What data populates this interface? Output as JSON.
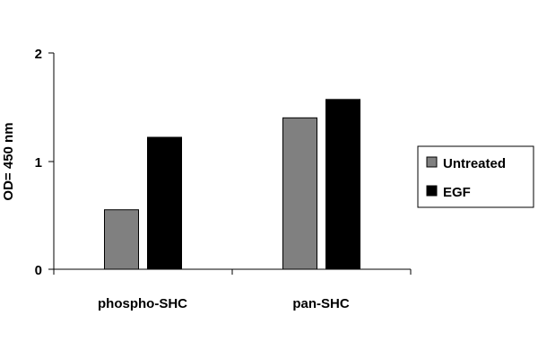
{
  "chart_data": {
    "type": "bar",
    "categories": [
      "phospho-SHC",
      "pan-SHC"
    ],
    "series": [
      {
        "name": "Untreated",
        "values": [
          0.55,
          1.4
        ],
        "color": "#808080"
      },
      {
        "name": "EGF",
        "values": [
          1.22,
          1.57
        ],
        "color": "#000000"
      }
    ],
    "title": "",
    "xlabel": "",
    "ylabel": "OD= 450 nm",
    "ylim": [
      0,
      2
    ],
    "yticks": [
      "0",
      "1",
      "2"
    ],
    "grid": false,
    "legend_position": "right"
  }
}
